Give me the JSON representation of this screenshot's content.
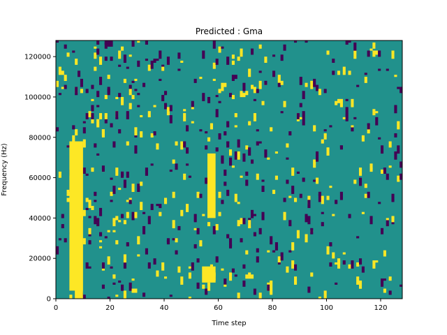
{
  "chart_data": {
    "type": "heatmap",
    "title": "Predicted : Gma",
    "xlabel": "Time step",
    "ylabel": "Frequency (Hz)",
    "xlim": [
      0,
      128
    ],
    "ylim": [
      0,
      128000
    ],
    "x_ticks": [
      0,
      20,
      40,
      60,
      80,
      100,
      120
    ],
    "y_ticks": [
      0,
      20000,
      40000,
      60000,
      80000,
      100000,
      120000
    ],
    "x_tick_labels": [
      "0",
      "20",
      "40",
      "60",
      "80",
      "100",
      "120"
    ],
    "y_tick_labels": [
      "0",
      "20000",
      "40000",
      "60000",
      "80000",
      "100000",
      "120000"
    ],
    "grid": false,
    "colormap": "viridis",
    "background_value_color": "#21918c",
    "high_value_color": "#fde725",
    "low_value_color": "#440154",
    "n_time_steps": 128,
    "n_freq_bins": 128,
    "note_cells_summary": {
      "high": [
        {
          "x": [
            5,
            10
          ],
          "y": [
            4000,
            78000
          ]
        },
        {
          "x": [
            7,
            10
          ],
          "y": [
            0,
            78000
          ]
        },
        {
          "x": [
            56,
            59
          ],
          "y": [
            40000,
            72000
          ]
        },
        {
          "x": [
            54,
            59
          ],
          "y": [
            8000,
            16000
          ]
        }
      ]
    }
  }
}
